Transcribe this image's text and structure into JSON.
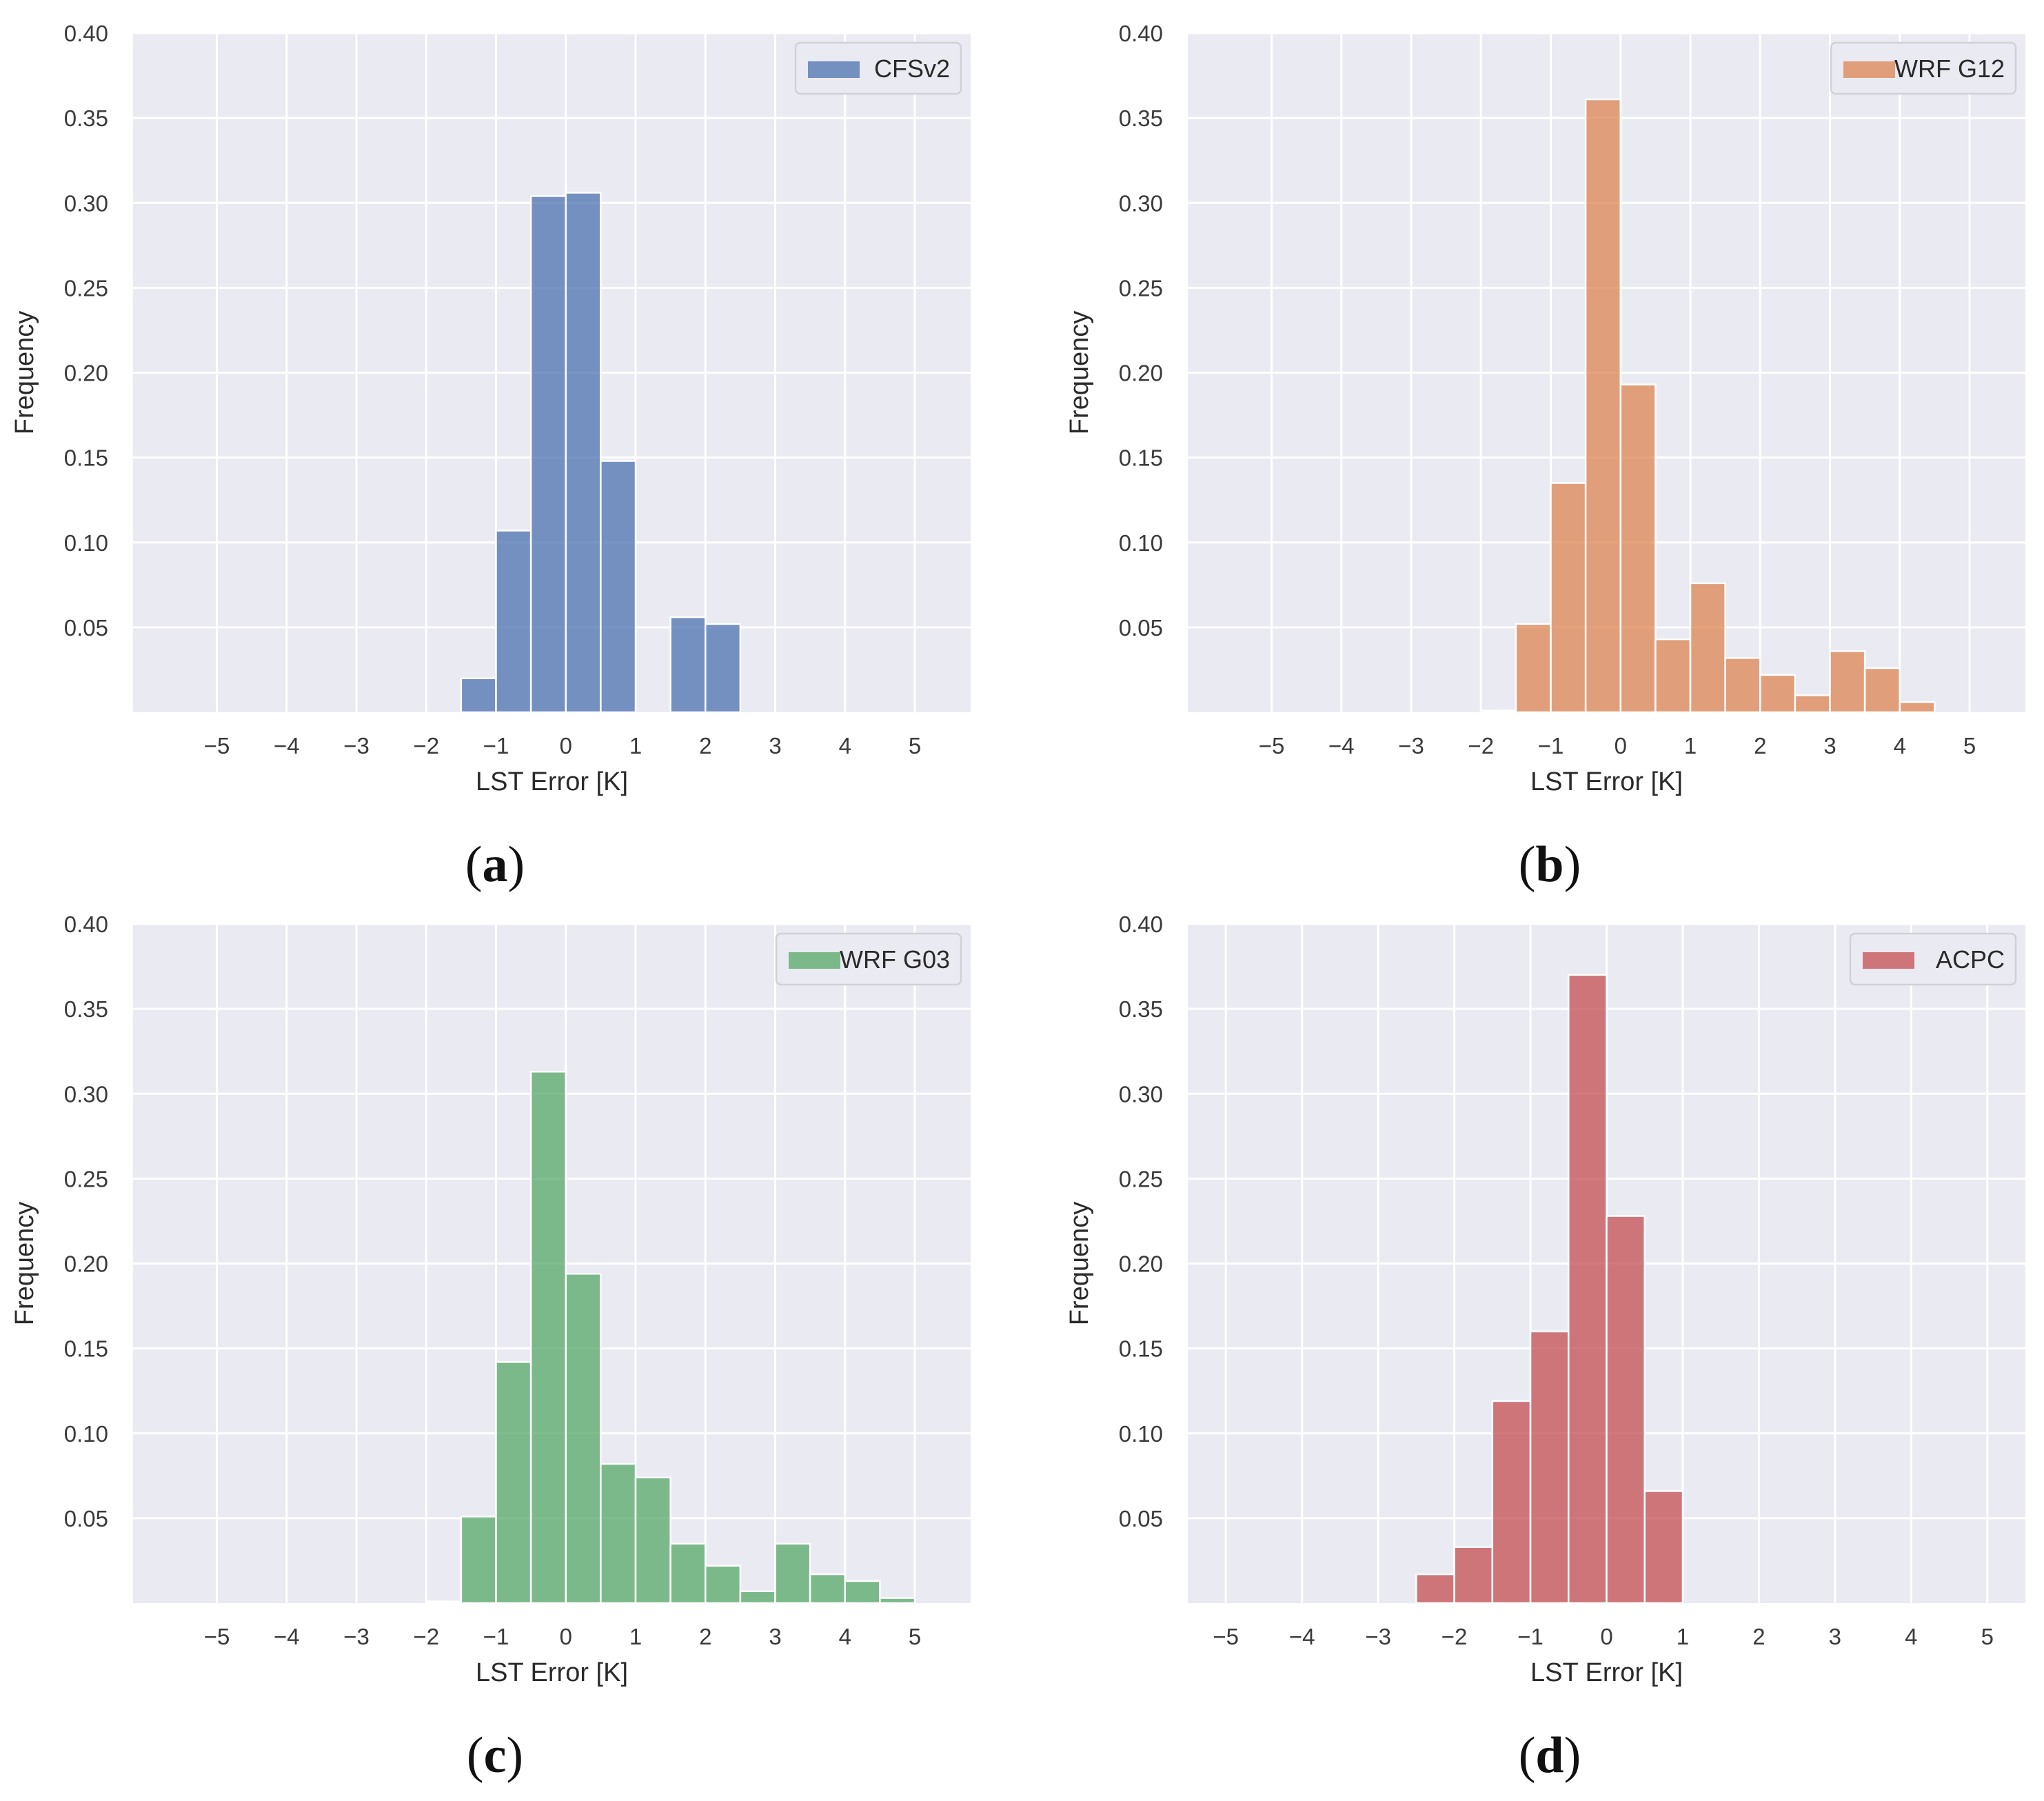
{
  "figure": {
    "xlabel": "LST Error [K]",
    "ylabel": "Frequency",
    "plot_background": "#eaeaf2",
    "grid_color": "#ffffff"
  },
  "chart_data": [
    {
      "type": "bar",
      "panel_label": "(a)",
      "panel_letter": "a",
      "title": "",
      "xlabel": "LST Error [K]",
      "ylabel": "Frequency",
      "legend": "CFSv2",
      "legend_position": "top-right",
      "color": "#4c72b0",
      "xlim": [
        -6.2,
        5.8
      ],
      "ylim": [
        0.0,
        0.4
      ],
      "xticks": [
        -5,
        -4,
        -3,
        -2,
        -1,
        0,
        1,
        2,
        3,
        4,
        5
      ],
      "xtick_labels": [
        "−5",
        "−4",
        "−3",
        "−2",
        "−1",
        "0",
        "1",
        "2",
        "3",
        "4",
        "5"
      ],
      "yticks": [
        0.05,
        0.1,
        0.15,
        0.2,
        0.25,
        0.3,
        0.35,
        0.4
      ],
      "ytick_labels": [
        "0.05",
        "0.10",
        "0.15",
        "0.20",
        "0.25",
        "0.30",
        "0.35",
        "0.40"
      ],
      "bin_width": 0.5,
      "bins_start": [
        -1.5,
        -1.0,
        -0.5,
        0.0,
        0.5,
        1.5,
        2.0
      ],
      "values": [
        0.02,
        0.107,
        0.304,
        0.306,
        0.148,
        0.056,
        0.052
      ]
    },
    {
      "type": "bar",
      "panel_label": "(b)",
      "panel_letter": "b",
      "title": "",
      "xlabel": "LST Error [K]",
      "ylabel": "Frequency",
      "legend": "WRF G12",
      "legend_position": "top-right",
      "color": "#dd8452",
      "xlim": [
        -6.2,
        5.8
      ],
      "ylim": [
        0.0,
        0.4
      ],
      "xticks": [
        -5,
        -4,
        -3,
        -2,
        -1,
        0,
        1,
        2,
        3,
        4,
        5
      ],
      "xtick_labels": [
        "−5",
        "−4",
        "−3",
        "−2",
        "−1",
        "0",
        "1",
        "2",
        "3",
        "4",
        "5"
      ],
      "yticks": [
        0.05,
        0.1,
        0.15,
        0.2,
        0.25,
        0.3,
        0.35,
        0.4
      ],
      "ytick_labels": [
        "0.05",
        "0.10",
        "0.15",
        "0.20",
        "0.25",
        "0.30",
        "0.35",
        "0.40"
      ],
      "bin_width": 0.5,
      "bins_start": [
        -2.0,
        -1.5,
        -1.0,
        -0.5,
        0.0,
        0.5,
        1.0,
        1.5,
        2.0,
        2.5,
        3.0,
        3.5,
        4.0
      ],
      "values": [
        0.001,
        0.052,
        0.135,
        0.361,
        0.193,
        0.043,
        0.076,
        0.032,
        0.022,
        0.01,
        0.036,
        0.026,
        0.006
      ]
    },
    {
      "type": "bar",
      "panel_label": "(c)",
      "panel_letter": "c",
      "title": "",
      "xlabel": "LST Error [K]",
      "ylabel": "Frequency",
      "legend": "WRF G03",
      "legend_position": "top-right",
      "color": "#55a868",
      "xlim": [
        -6.2,
        5.8
      ],
      "ylim": [
        0.0,
        0.4
      ],
      "xticks": [
        -5,
        -4,
        -3,
        -2,
        -1,
        0,
        1,
        2,
        3,
        4,
        5
      ],
      "xtick_labels": [
        "−5",
        "−4",
        "−3",
        "−2",
        "−1",
        "0",
        "1",
        "2",
        "3",
        "4",
        "5"
      ],
      "yticks": [
        0.05,
        0.1,
        0.15,
        0.2,
        0.25,
        0.3,
        0.35,
        0.4
      ],
      "ytick_labels": [
        "0.05",
        "0.10",
        "0.15",
        "0.20",
        "0.25",
        "0.30",
        "0.35",
        "0.40"
      ],
      "bin_width": 0.5,
      "bins_start": [
        -2.0,
        -1.5,
        -1.0,
        -0.5,
        0.0,
        0.5,
        1.0,
        1.5,
        2.0,
        2.5,
        3.0,
        3.5,
        4.0,
        4.5
      ],
      "values": [
        0.001,
        0.051,
        0.142,
        0.313,
        0.194,
        0.082,
        0.074,
        0.035,
        0.022,
        0.007,
        0.035,
        0.017,
        0.013,
        0.003
      ]
    },
    {
      "type": "bar",
      "panel_label": "(d)",
      "panel_letter": "d",
      "title": "",
      "xlabel": "LST Error [K]",
      "ylabel": "Frequency",
      "legend": "ACPC",
      "legend_position": "top-right",
      "color": "#c44e52",
      "xlim": [
        -5.5,
        5.5
      ],
      "ylim": [
        0.0,
        0.4
      ],
      "xticks": [
        -5,
        -4,
        -3,
        -2,
        -1,
        0,
        1,
        2,
        3,
        4,
        5
      ],
      "xtick_labels": [
        "−5",
        "−4",
        "−3",
        "−2",
        "−1",
        "0",
        "1",
        "2",
        "3",
        "4",
        "5"
      ],
      "yticks": [
        0.05,
        0.1,
        0.15,
        0.2,
        0.25,
        0.3,
        0.35,
        0.4
      ],
      "ytick_labels": [
        "0.05",
        "0.10",
        "0.15",
        "0.20",
        "0.25",
        "0.30",
        "0.35",
        "0.40"
      ],
      "bin_width": 0.5,
      "bins_start": [
        -2.5,
        -2.0,
        -1.5,
        -1.0,
        -0.5,
        0.0,
        0.5
      ],
      "values": [
        0.017,
        0.033,
        0.119,
        0.16,
        0.37,
        0.228,
        0.066
      ]
    }
  ]
}
